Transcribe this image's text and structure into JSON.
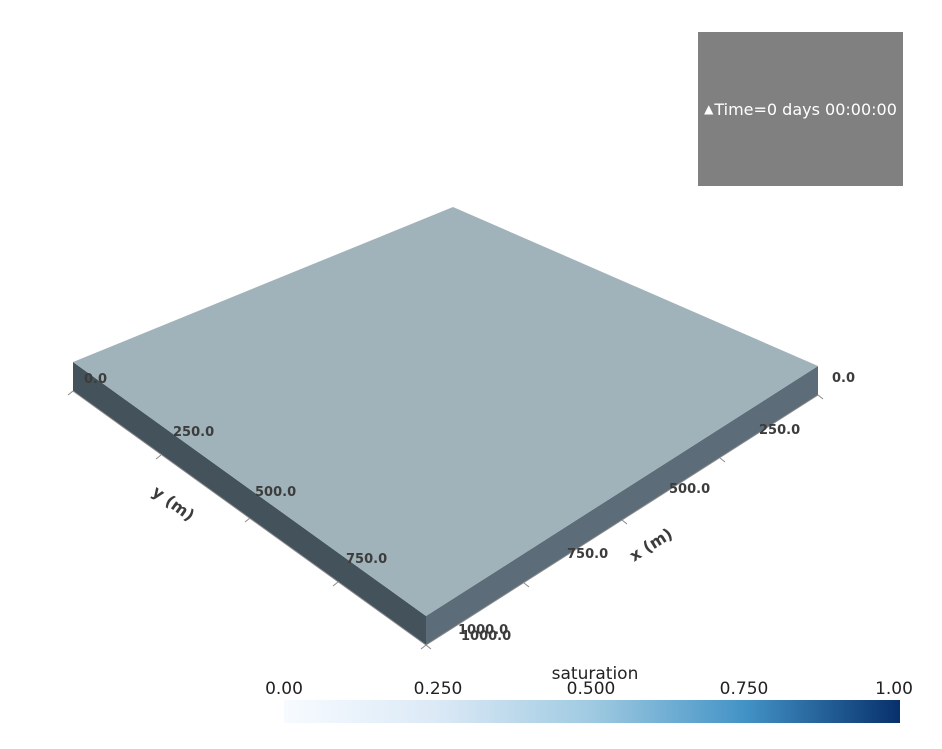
{
  "time_annotation": {
    "marker": "▲",
    "text": "Time=0 days 00:00:00",
    "background_color": "#808080"
  },
  "model": {
    "top_color": "#a1b3ba",
    "left_face_color": "#44525c",
    "right_face_color": "#5c6d79"
  },
  "axes": {
    "x_axis": {
      "title": "x (m)",
      "ticks": [
        "0.0",
        "250.0",
        "500.0",
        "750.0",
        "1000.0"
      ]
    },
    "y_axis": {
      "title": "y (m)",
      "ticks": [
        "0.0",
        "250.0",
        "500.0",
        "750.0",
        "1000.0"
      ]
    }
  },
  "colorbar": {
    "title": "saturation",
    "labels": [
      "0.00",
      "0.250",
      "0.500",
      "0.750",
      "1.00"
    ],
    "range": [
      0,
      1
    ],
    "colormap": [
      "#f7fbff",
      "#dbe9f6",
      "#9fcae1",
      "#4292c6",
      "#08306b"
    ]
  }
}
